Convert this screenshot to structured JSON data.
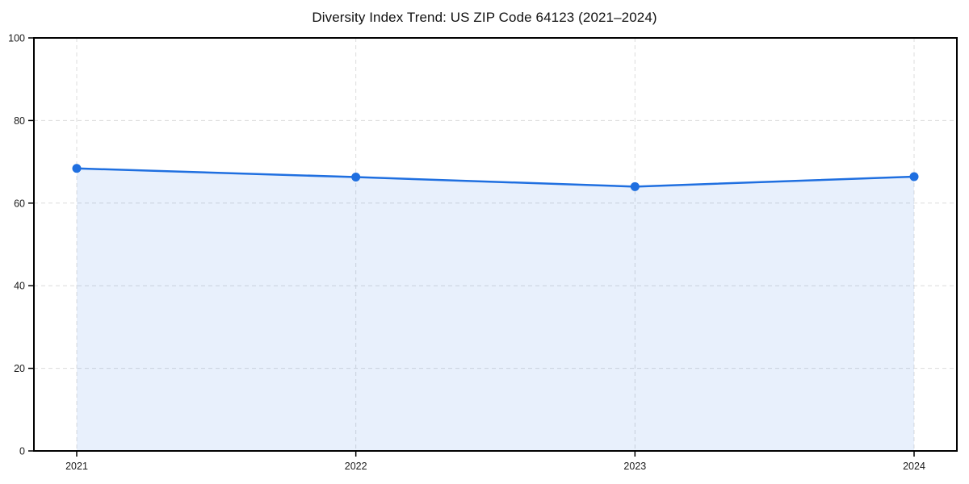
{
  "chart_data": {
    "type": "area",
    "title": "Diversity Index Trend: US ZIP Code 64123 (2021–2024)",
    "categories": [
      "2021",
      "2022",
      "2023",
      "2024"
    ],
    "series": [
      {
        "name": "Diversity Index",
        "values": [
          68.4,
          66.3,
          64.0,
          66.4
        ]
      }
    ],
    "xlabel": "",
    "ylabel": "",
    "ylim": [
      0,
      100
    ],
    "yticks": [
      0,
      20,
      40,
      60,
      80,
      100
    ],
    "grid": "dashed-both-axes",
    "legend": "none",
    "colors": {
      "line": "#1f6fe0",
      "marker": "#1f6fe0",
      "fill": "rgba(31,111,224,0.10)",
      "grid": "#dcdcdc",
      "spine": "#000000",
      "tick_label": "#1a1a1a",
      "title": "#111111",
      "background": "#ffffff"
    }
  }
}
